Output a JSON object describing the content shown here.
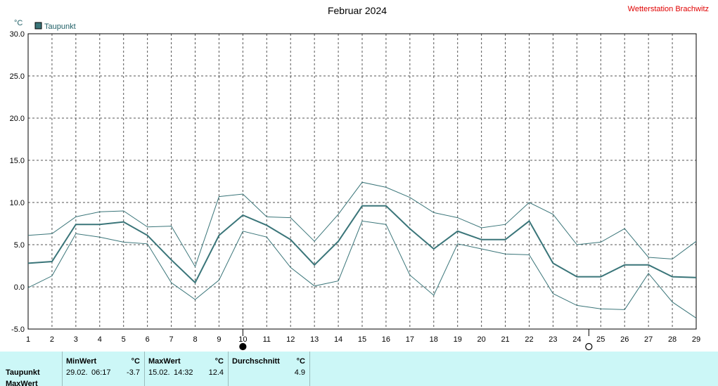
{
  "chart_data": {
    "type": "line",
    "title": "Februar 2024",
    "station": "Wetterstation Brachwitz",
    "ylabel": "°C",
    "xlabel": "",
    "ylim": [
      -5,
      30
    ],
    "xlim": [
      1,
      29
    ],
    "yticks": [
      "-5.0",
      "0.0",
      "5.0",
      "10.0",
      "15.0",
      "20.0",
      "25.0",
      "30.0"
    ],
    "x": [
      1,
      2,
      3,
      4,
      5,
      6,
      7,
      8,
      9,
      10,
      11,
      12,
      13,
      14,
      15,
      16,
      17,
      18,
      19,
      20,
      21,
      22,
      23,
      24,
      25,
      26,
      27,
      28,
      29
    ],
    "grid": true,
    "legend": "top-left",
    "series": [
      {
        "name": "Taupunkt",
        "color": "#3a7579",
        "values": [
          2.8,
          3.0,
          7.4,
          7.4,
          7.7,
          6.1,
          3.2,
          0.5,
          6.1,
          8.5,
          7.3,
          5.6,
          2.6,
          5.4,
          9.6,
          9.6,
          6.9,
          4.5,
          6.6,
          5.6,
          5.6,
          7.8,
          2.8,
          1.2,
          1.2,
          2.6,
          2.6,
          1.2,
          1.1
        ]
      },
      {
        "role": "max",
        "color": "#3a7579",
        "values": [
          6.1,
          6.3,
          8.3,
          8.9,
          9.0,
          7.1,
          7.2,
          2.4,
          10.7,
          11.0,
          8.3,
          8.2,
          5.4,
          8.6,
          12.4,
          11.8,
          10.6,
          8.8,
          8.2,
          7.0,
          7.4,
          10.0,
          8.6,
          5.0,
          5.3,
          6.9,
          3.5,
          3.3,
          5.4
        ]
      },
      {
        "role": "min",
        "color": "#3a7579",
        "values": [
          -0.1,
          1.3,
          6.3,
          5.9,
          5.3,
          5.1,
          0.5,
          -1.5,
          0.8,
          6.6,
          5.9,
          2.3,
          0.1,
          0.7,
          7.8,
          7.4,
          1.4,
          -1.0,
          5.1,
          4.5,
          3.9,
          3.8,
          -0.8,
          -2.2,
          -2.6,
          -2.7,
          1.6,
          -1.8,
          -3.7
        ]
      }
    ],
    "moon_phases": [
      {
        "day": 10,
        "phase": "new-moon"
      },
      {
        "day": 24.5,
        "phase": "full-moon"
      }
    ]
  },
  "stats": {
    "rows": [
      "Taupunkt",
      "MaxWert"
    ],
    "min_header": "MinWert",
    "max_header": "MaxWert",
    "avg_header": "Durchschnitt",
    "unit": "°C",
    "min_date": "29.02.",
    "min_time": "06:17",
    "min_value": "-3.7",
    "max_date": "15.02.",
    "max_time": "14:32",
    "max_value": "12.4",
    "avg_value": "4.9"
  }
}
